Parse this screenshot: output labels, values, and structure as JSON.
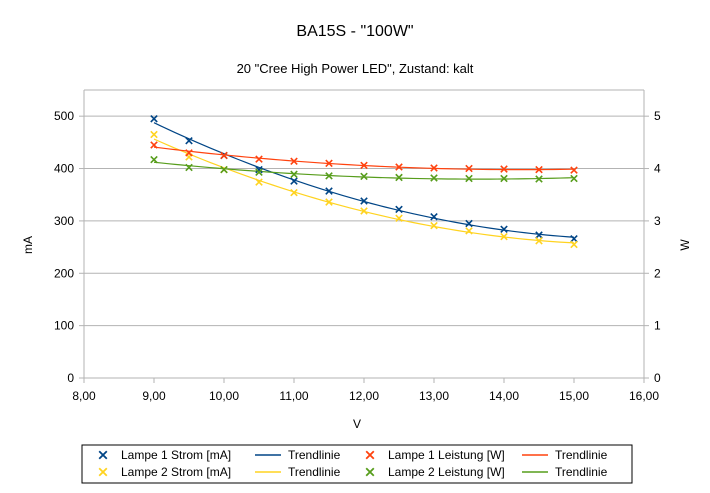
{
  "chart_data": {
    "type": "scatter",
    "title": "BA15S - \"100W\"",
    "subtitle": "20 \"Cree High Power LED\", Zustand: kalt",
    "xlabel": "V",
    "ylabel_left": "mA",
    "ylabel_right": "W",
    "xlim": [
      8,
      16
    ],
    "ylim_left": [
      0,
      550
    ],
    "ylim_right": [
      0,
      5.5
    ],
    "x_ticks": [
      "8,00",
      "9,00",
      "10,00",
      "11,00",
      "12,00",
      "13,00",
      "14,00",
      "15,00",
      "16,00"
    ],
    "y_ticks_left": [
      "0",
      "100",
      "200",
      "300",
      "400",
      "500"
    ],
    "y_ticks_right": [
      "0",
      "1",
      "2",
      "3",
      "4",
      "5"
    ],
    "grid": "horizontal",
    "legend_position": "bottom",
    "x": [
      9.0,
      9.5,
      10.0,
      10.5,
      11.0,
      11.5,
      12.0,
      12.5,
      13.0,
      13.5,
      14.0,
      14.5,
      15.0
    ],
    "series": [
      {
        "name": "Lampe 1 Strom [mA]",
        "axis": "left",
        "color": "#004586",
        "values": [
          495,
          453,
          425,
          398,
          376,
          357,
          338,
          322,
          308,
          295,
          284,
          273,
          266
        ]
      },
      {
        "name": "Lampe 2 Strom [mA]",
        "axis": "left",
        "color": "#ffd320",
        "values": [
          465,
          422,
          398,
          374,
          354,
          336,
          319,
          305,
          291,
          281,
          270,
          262,
          255
        ]
      },
      {
        "name": "Lampe 1 Leistung [W]",
        "axis": "right",
        "color": "#ff420e",
        "values": [
          4.45,
          4.3,
          4.25,
          4.18,
          4.14,
          4.1,
          4.06,
          4.03,
          4.01,
          4.0,
          3.99,
          3.98,
          3.97
        ]
      },
      {
        "name": "Lampe 2 Leistung [W]",
        "axis": "right",
        "color": "#579d1c",
        "values": [
          4.17,
          4.02,
          3.98,
          3.93,
          3.89,
          3.86,
          3.85,
          3.83,
          3.82,
          3.81,
          3.81,
          3.8,
          3.81
        ]
      }
    ],
    "trendlines": [
      {
        "name": "Trendlinie",
        "series_index": 0,
        "color": "#004586"
      },
      {
        "name": "Trendlinie",
        "series_index": 1,
        "color": "#ffd320"
      },
      {
        "name": "Trendlinie",
        "series_index": 2,
        "color": "#ff420e"
      },
      {
        "name": "Trendlinie",
        "series_index": 3,
        "color": "#579d1c"
      }
    ]
  }
}
